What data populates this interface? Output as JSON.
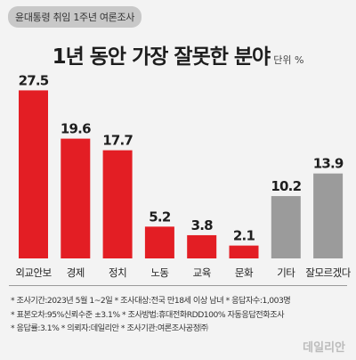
{
  "header": {
    "badge": "윤대통령 취임 1주년 여론조사",
    "title": "1년 동안 가장 잘못한 분야",
    "unit": "단위 %"
  },
  "chart_data": {
    "type": "bar",
    "categories": [
      "외교안보",
      "경제",
      "정치",
      "노동",
      "교육",
      "문화",
      "기타",
      "잘모르겠다"
    ],
    "values": [
      27.5,
      19.6,
      17.7,
      5.2,
      3.8,
      2.1,
      10.2,
      13.9
    ],
    "title": "1년 동안 가장 잘못한 분야",
    "ylabel": "단위 %",
    "ylim": [
      0,
      30
    ],
    "grid": false,
    "colors": [
      "#e31e24",
      "#e31e24",
      "#e31e24",
      "#e31e24",
      "#e31e24",
      "#e31e24",
      "#9b9b9b",
      "#9b9b9b"
    ]
  },
  "footnotes": [
    "* 조사기간:2023년 5월 1~2일  * 조사대상:전국 만18세 이상 남녀  * 응답자수:1,003명",
    "* 표본오차:95%신뢰수준 ±3.1%  * 조사방법:휴대전화RDD100% 자동응답전화조사",
    "* 응답률:3.1%  * 의뢰자:데일리안  * 조사기관:여론조사공정㈜"
  ],
  "watermark": "데일리안"
}
